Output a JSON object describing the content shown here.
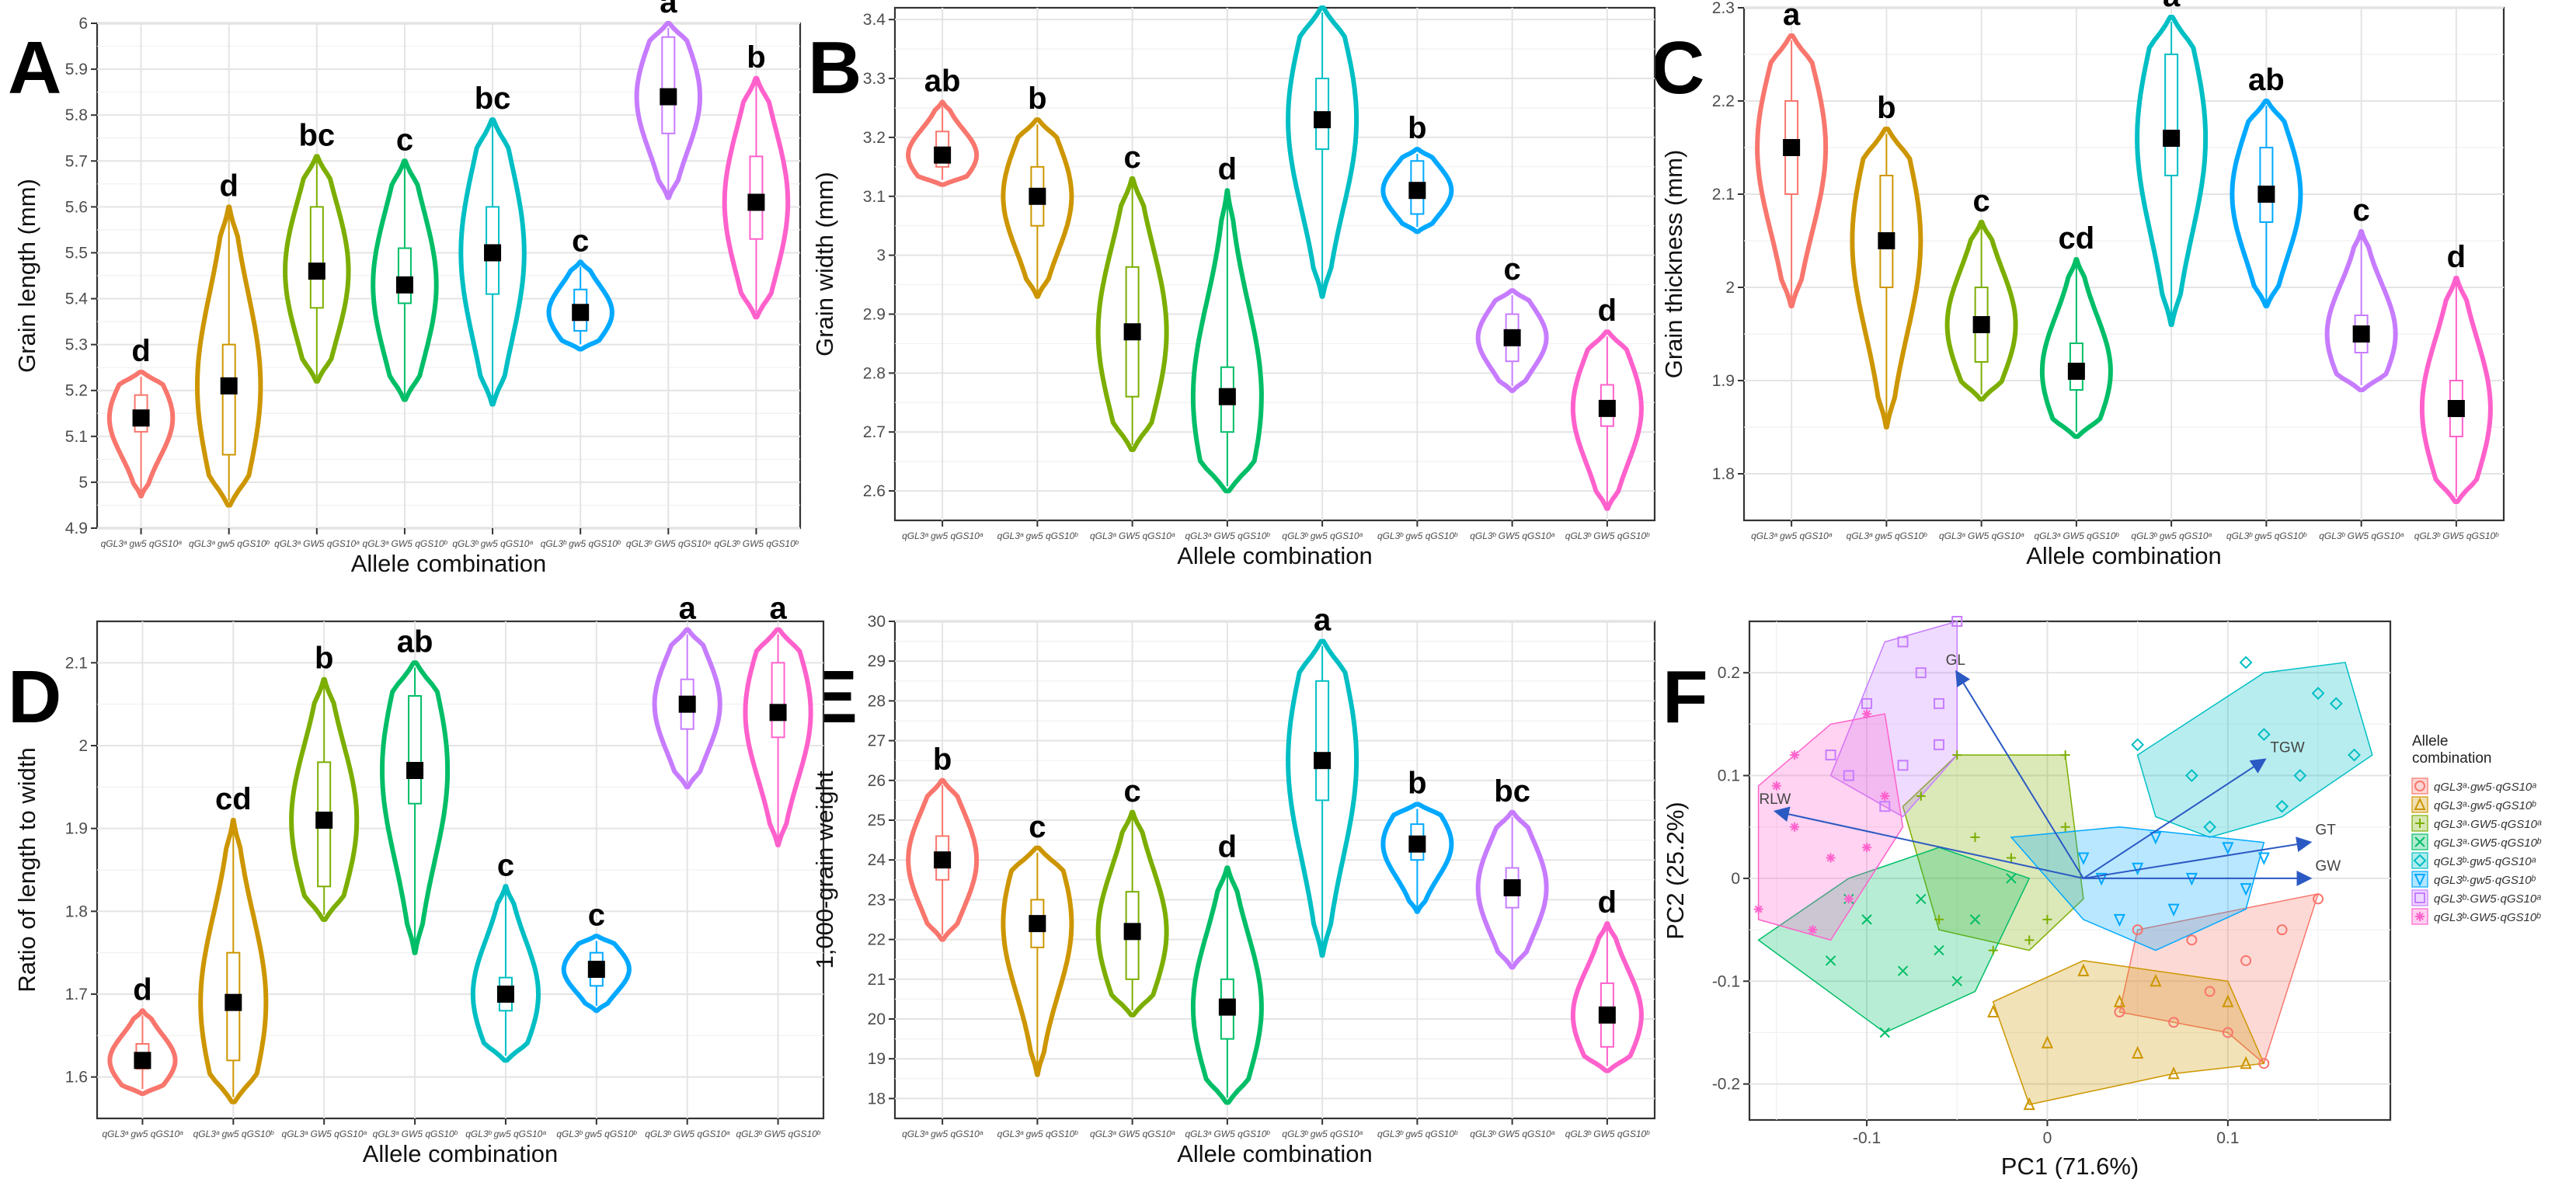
{
  "figure": {
    "panel_letters": [
      "A",
      "B",
      "C",
      "D",
      "E",
      "F"
    ]
  },
  "chart_data": [
    {
      "panel": "A",
      "type": "violin",
      "xlabel": "Allele combination",
      "ylabel": "Grain length (mm)",
      "ylim": [
        4.9,
        6.0
      ],
      "yticks": [
        4.9,
        5.0,
        5.1,
        5.2,
        5.3,
        5.4,
        5.5,
        5.6,
        5.7,
        5.8,
        5.9,
        6.0
      ],
      "categories": [
        "qGL3ᵃ gw5 qGS10ᵃ",
        "qGL3ᵃ gw5 qGS10ᵇ",
        "qGL3ᵃ GW5 qGS10ᵃ",
        "qGL3ᵃ GW5 qGS10ᵇ",
        "qGL3ᵇ gw5 qGS10ᵃ",
        "qGL3ᵇ gw5 qGS10ᵇ",
        "qGL3ᵇ GW5 qGS10ᵃ",
        "qGL3ᵇ GW5 qGS10ᵇ"
      ],
      "means": [
        5.14,
        5.21,
        5.46,
        5.43,
        5.5,
        5.37,
        5.84,
        5.61
      ],
      "mins": [
        4.97,
        4.95,
        5.22,
        5.18,
        5.17,
        5.29,
        5.62,
        5.36
      ],
      "maxs": [
        5.24,
        5.6,
        5.71,
        5.7,
        5.79,
        5.48,
        6.0,
        5.88
      ],
      "q1": [
        5.11,
        5.06,
        5.38,
        5.39,
        5.41,
        5.33,
        5.76,
        5.53
      ],
      "q3": [
        5.19,
        5.3,
        5.6,
        5.51,
        5.6,
        5.42,
        5.97,
        5.71
      ],
      "significance": [
        "d",
        "d",
        "bc",
        "c",
        "bc",
        "c",
        "a",
        "b"
      ]
    },
    {
      "panel": "B",
      "type": "violin",
      "xlabel": "Allele combination",
      "ylabel": "Grain width (mm)",
      "ylim": [
        2.55,
        3.42
      ],
      "yticks": [
        2.6,
        2.7,
        2.8,
        2.9,
        3.0,
        3.1,
        3.2,
        3.3,
        3.4
      ],
      "categories": [
        "qGL3ᵃ gw5 qGS10ᵃ",
        "qGL3ᵃ gw5 qGS10ᵇ",
        "qGL3ᵃ GW5 qGS10ᵃ",
        "qGL3ᵃ GW5 qGS10ᵇ",
        "qGL3ᵇ gw5 qGS10ᵃ",
        "qGL3ᵇ gw5 qGS10ᵇ",
        "qGL3ᵇ GW5 qGS10ᵃ",
        "qGL3ᵇ GW5 qGS10ᵇ"
      ],
      "means": [
        3.17,
        3.1,
        2.87,
        2.76,
        3.23,
        3.11,
        2.86,
        2.74
      ],
      "mins": [
        3.12,
        2.93,
        2.67,
        2.6,
        2.93,
        3.04,
        2.77,
        2.57
      ],
      "maxs": [
        3.26,
        3.23,
        3.13,
        3.11,
        3.42,
        3.18,
        2.94,
        2.87
      ],
      "q1": [
        3.15,
        3.05,
        2.76,
        2.7,
        3.18,
        3.07,
        2.82,
        2.71
      ],
      "q3": [
        3.21,
        3.15,
        2.98,
        2.81,
        3.3,
        3.16,
        2.9,
        2.78
      ],
      "significance": [
        "ab",
        "b",
        "c",
        "d",
        "a",
        "b",
        "c",
        "d"
      ]
    },
    {
      "panel": "C",
      "type": "violin",
      "xlabel": "Allele combination",
      "ylabel": "Grain thickness (mm)",
      "ylim": [
        1.75,
        2.3
      ],
      "yticks": [
        1.8,
        1.9,
        2.0,
        2.1,
        2.2,
        2.3
      ],
      "categories": [
        "qGL3ᵃ gw5 qGS10ᵃ",
        "qGL3ᵃ gw5 qGS10ᵇ",
        "qGL3ᵃ GW5 qGS10ᵃ",
        "qGL3ᵃ GW5 qGS10ᵇ",
        "qGL3ᵇ gw5 qGS10ᵃ",
        "qGL3ᵇ gw5 qGS10ᵇ",
        "qGL3ᵇ GW5 qGS10ᵃ",
        "qGL3ᵇ GW5 qGS10ᵇ"
      ],
      "means": [
        2.15,
        2.05,
        1.96,
        1.91,
        2.16,
        2.1,
        1.95,
        1.87
      ],
      "mins": [
        1.98,
        1.85,
        1.88,
        1.84,
        1.96,
        1.98,
        1.89,
        1.77
      ],
      "maxs": [
        2.27,
        2.17,
        2.07,
        2.03,
        2.29,
        2.2,
        2.06,
        2.01
      ],
      "q1": [
        2.1,
        2.0,
        1.92,
        1.89,
        2.12,
        2.07,
        1.93,
        1.84
      ],
      "q3": [
        2.2,
        2.12,
        2.0,
        1.94,
        2.25,
        2.15,
        1.97,
        1.9
      ],
      "significance": [
        "a",
        "b",
        "c",
        "cd",
        "a",
        "ab",
        "c",
        "d"
      ]
    },
    {
      "panel": "D",
      "type": "violin",
      "xlabel": "Allele combination",
      "ylabel": "Ratio of length to width",
      "ylim": [
        1.55,
        2.15
      ],
      "yticks": [
        1.6,
        1.7,
        1.8,
        1.9,
        2.0,
        2.1
      ],
      "categories": [
        "qGL3ᵃ gw5 qGS10ᵃ",
        "qGL3ᵃ gw5 qGS10ᵇ",
        "qGL3ᵃ GW5 qGS10ᵃ",
        "qGL3ᵃ GW5 qGS10ᵇ",
        "qGL3ᵇ gw5 qGS10ᵃ",
        "qGL3ᵇ gw5 qGS10ᵇ",
        "qGL3ᵇ GW5 qGS10ᵃ",
        "qGL3ᵇ GW5 qGS10ᵇ"
      ],
      "means": [
        1.62,
        1.69,
        1.91,
        1.97,
        1.7,
        1.73,
        2.05,
        2.04
      ],
      "mins": [
        1.58,
        1.57,
        1.79,
        1.75,
        1.62,
        1.68,
        1.95,
        1.88
      ],
      "maxs": [
        1.68,
        1.91,
        2.08,
        2.1,
        1.83,
        1.77,
        2.14,
        2.14
      ],
      "q1": [
        1.61,
        1.62,
        1.83,
        1.93,
        1.68,
        1.71,
        2.02,
        2.01
      ],
      "q3": [
        1.64,
        1.75,
        1.98,
        2.06,
        1.72,
        1.75,
        2.08,
        2.1
      ],
      "significance": [
        "d",
        "cd",
        "b",
        "ab",
        "c",
        "c",
        "a",
        "a"
      ]
    },
    {
      "panel": "E",
      "type": "violin",
      "xlabel": "Allele combination",
      "ylabel": "1,000-grain weight",
      "ylim": [
        17.5,
        30
      ],
      "yticks": [
        18,
        19,
        20,
        21,
        22,
        23,
        24,
        25,
        26,
        27,
        28,
        29,
        30
      ],
      "categories": [
        "qGL3ᵃ gw5 qGS10ᵃ",
        "qGL3ᵃ gw5 qGS10ᵇ",
        "qGL3ᵃ GW5 qGS10ᵃ",
        "qGL3ᵃ GW5 qGS10ᵇ",
        "qGL3ᵇ gw5 qGS10ᵃ",
        "qGL3ᵇ gw5 qGS10ᵇ",
        "qGL3ᵇ GW5 qGS10ᵃ",
        "qGL3ᵇ GW5 qGS10ᵇ"
      ],
      "means": [
        24.0,
        22.4,
        22.2,
        20.3,
        26.5,
        24.4,
        23.3,
        20.1
      ],
      "mins": [
        22.0,
        18.6,
        20.1,
        17.9,
        21.6,
        22.7,
        21.3,
        18.7
      ],
      "maxs": [
        26.0,
        24.3,
        25.2,
        23.8,
        29.5,
        25.4,
        25.2,
        22.4
      ],
      "q1": [
        23.5,
        21.8,
        21.0,
        19.5,
        25.5,
        24.0,
        22.8,
        19.3
      ],
      "q3": [
        24.6,
        23.0,
        23.2,
        21.0,
        28.5,
        24.9,
        23.8,
        20.9
      ],
      "significance": [
        "b",
        "c",
        "c",
        "d",
        "a",
        "b",
        "bc",
        "d"
      ]
    },
    {
      "panel": "F",
      "type": "scatter",
      "xlabel": "PC1 (71.6%)",
      "ylabel": "PC2 (25.2%)",
      "xlim": [
        -0.165,
        0.19
      ],
      "ylim": [
        -0.235,
        0.25
      ],
      "xticks": [
        -0.1,
        0.0,
        0.1
      ],
      "yticks": [
        -0.2,
        -0.1,
        0.0,
        0.1,
        0.2
      ],
      "legend_title": "Allele combination",
      "legend_position": "right",
      "series": [
        {
          "name": "qGL3ᵃ·gw5·qGS10ᵃ",
          "color": "#F8766D",
          "marker": "circle",
          "points": [
            [
              0.04,
              -0.13
            ],
            [
              0.1,
              -0.15
            ],
            [
              0.12,
              -0.18
            ],
            [
              0.05,
              -0.05
            ],
            [
              0.09,
              -0.11
            ],
            [
              0.13,
              -0.05
            ],
            [
              0.07,
              -0.14
            ],
            [
              0.11,
              -0.08
            ],
            [
              0.15,
              -0.02
            ],
            [
              0.08,
              -0.06
            ]
          ]
        },
        {
          "name": "qGL3ᵃ·gw5·qGS10ᵇ",
          "color": "#CD9600",
          "marker": "triangle",
          "points": [
            [
              -0.01,
              -0.22
            ],
            [
              0.04,
              -0.12
            ],
            [
              0.07,
              -0.19
            ],
            [
              0.1,
              -0.12
            ],
            [
              0.0,
              -0.16
            ],
            [
              0.02,
              -0.09
            ],
            [
              0.06,
              -0.1
            ],
            [
              0.11,
              -0.18
            ],
            [
              -0.03,
              -0.13
            ],
            [
              0.05,
              -0.17
            ]
          ]
        },
        {
          "name": "qGL3ᵃ·GW5·qGS10ᵃ",
          "color": "#7CAE00",
          "marker": "plus",
          "points": [
            [
              -0.05,
              0.12
            ],
            [
              0.01,
              0.12
            ],
            [
              -0.06,
              -0.04
            ],
            [
              -0.01,
              -0.06
            ],
            [
              -0.04,
              0.04
            ],
            [
              -0.02,
              0.02
            ],
            [
              0.0,
              -0.04
            ],
            [
              -0.07,
              0.08
            ],
            [
              -0.03,
              -0.07
            ],
            [
              0.01,
              0.05
            ]
          ]
        },
        {
          "name": "qGL3ᵃ·GW5·qGS10ᵇ",
          "color": "#00BE67",
          "marker": "cross",
          "points": [
            [
              -0.12,
              -0.08
            ],
            [
              -0.09,
              -0.15
            ],
            [
              -0.06,
              -0.07
            ],
            [
              -0.02,
              0.0
            ],
            [
              -0.1,
              -0.04
            ],
            [
              -0.07,
              -0.02
            ],
            [
              -0.04,
              -0.04
            ],
            [
              -0.11,
              -0.02
            ],
            [
              -0.08,
              -0.09
            ],
            [
              -0.05,
              -0.1
            ]
          ]
        },
        {
          "name": "qGL3ᵇ·gw5·qGS10ᵃ",
          "color": "#00BFC4",
          "marker": "diamond",
          "points": [
            [
              0.05,
              0.13
            ],
            [
              0.11,
              0.21
            ],
            [
              0.14,
              0.1
            ],
            [
              0.17,
              0.12
            ],
            [
              0.16,
              0.17
            ],
            [
              0.13,
              0.07
            ],
            [
              0.09,
              0.05
            ],
            [
              0.12,
              0.14
            ],
            [
              0.08,
              0.1
            ],
            [
              0.15,
              0.18
            ]
          ]
        },
        {
          "name": "qGL3ᵇ·gw5·qGS10ᵇ",
          "color": "#00A9FF",
          "marker": "triangle-down",
          "points": [
            [
              0.02,
              0.02
            ],
            [
              0.06,
              0.04
            ],
            [
              0.1,
              0.03
            ],
            [
              0.04,
              -0.04
            ],
            [
              0.08,
              0.0
            ],
            [
              0.11,
              -0.01
            ],
            [
              0.03,
              0.0
            ],
            [
              0.07,
              -0.03
            ],
            [
              0.12,
              0.02
            ],
            [
              0.05,
              0.01
            ]
          ]
        },
        {
          "name": "qGL3ᵇ·GW5·qGS10ᵃ",
          "color": "#C77CFF",
          "marker": "square",
          "points": [
            [
              -0.08,
              0.23
            ],
            [
              -0.05,
              0.25
            ],
            [
              -0.11,
              0.1
            ],
            [
              -0.06,
              0.13
            ],
            [
              -0.1,
              0.17
            ],
            [
              -0.07,
              0.2
            ],
            [
              -0.09,
              0.07
            ],
            [
              -0.12,
              0.12
            ],
            [
              -0.06,
              0.17
            ],
            [
              -0.08,
              0.11
            ]
          ]
        },
        {
          "name": "qGL3ᵇ·GW5·qGS10ᵇ",
          "color": "#FF61CC",
          "marker": "asterisk",
          "points": [
            [
              -0.14,
              0.05
            ],
            [
              -0.16,
              -0.03
            ],
            [
              -0.1,
              0.16
            ],
            [
              -0.12,
              0.02
            ],
            [
              -0.15,
              0.09
            ],
            [
              -0.11,
              -0.02
            ],
            [
              -0.09,
              0.08
            ],
            [
              -0.13,
              -0.05
            ],
            [
              -0.14,
              0.12
            ],
            [
              -0.1,
              0.03
            ]
          ]
        }
      ],
      "hulls": [
        {
          "series": 0,
          "vertices": [
            [
              0.04,
              -0.13
            ],
            [
              0.05,
              -0.05
            ],
            [
              0.15,
              -0.015
            ],
            [
              0.12,
              -0.18
            ],
            [
              0.1,
              -0.15
            ]
          ]
        },
        {
          "series": 1,
          "vertices": [
            [
              -0.01,
              -0.22
            ],
            [
              0.07,
              -0.19
            ],
            [
              0.12,
              -0.18
            ],
            [
              0.1,
              -0.1
            ],
            [
              0.02,
              -0.08
            ],
            [
              -0.03,
              -0.12
            ]
          ]
        },
        {
          "series": 2,
          "vertices": [
            [
              -0.05,
              0.12
            ],
            [
              0.01,
              0.12
            ],
            [
              0.02,
              -0.02
            ],
            [
              -0.01,
              -0.07
            ],
            [
              -0.06,
              -0.05
            ],
            [
              -0.08,
              0.07
            ]
          ]
        },
        {
          "series": 3,
          "vertices": [
            [
              -0.16,
              -0.06
            ],
            [
              -0.09,
              -0.15
            ],
            [
              -0.04,
              -0.11
            ],
            [
              -0.01,
              0.0
            ],
            [
              -0.06,
              0.03
            ],
            [
              -0.11,
              0.0
            ]
          ]
        },
        {
          "series": 4,
          "vertices": [
            [
              0.05,
              0.12
            ],
            [
              0.12,
              0.2
            ],
            [
              0.165,
              0.21
            ],
            [
              0.18,
              0.12
            ],
            [
              0.13,
              0.06
            ],
            [
              0.09,
              0.04
            ],
            [
              0.06,
              0.06
            ]
          ]
        },
        {
          "series": 5,
          "vertices": [
            [
              -0.02,
              0.04
            ],
            [
              0.04,
              0.05
            ],
            [
              0.12,
              0.035
            ],
            [
              0.11,
              -0.03
            ],
            [
              0.06,
              -0.07
            ],
            [
              0.02,
              -0.04
            ]
          ]
        },
        {
          "series": 6,
          "vertices": [
            [
              -0.09,
              0.23
            ],
            [
              -0.05,
              0.25
            ],
            [
              -0.05,
              0.12
            ],
            [
              -0.08,
              0.06
            ],
            [
              -0.12,
              0.1
            ]
          ]
        },
        {
          "series": 7,
          "vertices": [
            [
              -0.16,
              0.09
            ],
            [
              -0.12,
              0.15
            ],
            [
              -0.09,
              0.16
            ],
            [
              -0.08,
              0.05
            ],
            [
              -0.12,
              -0.06
            ],
            [
              -0.16,
              -0.04
            ]
          ]
        }
      ],
      "vectors": [
        {
          "label": "GL",
          "to": [
            -0.05,
            0.2
          ]
        },
        {
          "label": "TGW",
          "to": [
            0.12,
            0.115
          ]
        },
        {
          "label": "GT",
          "to": [
            0.145,
            0.035
          ]
        },
        {
          "label": "GW",
          "to": [
            0.145,
            0.0
          ]
        },
        {
          "label": "RLW",
          "to": [
            -0.15,
            0.065
          ]
        }
      ]
    }
  ]
}
